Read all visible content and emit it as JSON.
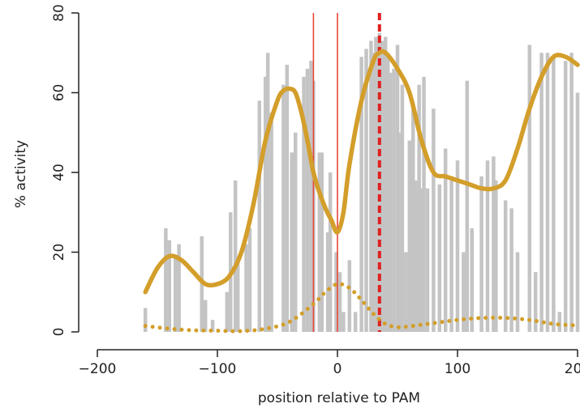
{
  "chart_data": {
    "type": "bar",
    "title": "",
    "xlabel": "position relative to PAM",
    "ylabel": "% activity",
    "xlim": [
      -200,
      200
    ],
    "ylim": [
      0,
      80
    ],
    "xticks": [
      -200,
      -100,
      0,
      100,
      200
    ],
    "yticks": [
      0,
      20,
      40,
      60,
      80
    ],
    "grid": false,
    "colors": {
      "bars": "#c4c4c4",
      "smooth_line": "#d39e2a",
      "vertical_lines": "#e8463c",
      "dashed_line": "#e02020"
    },
    "bars": {
      "x": [
        -160,
        -143,
        -140,
        -135,
        -132,
        -113,
        -110,
        -104,
        -92,
        -89,
        -85,
        -83,
        -76,
        -73,
        -65,
        -60,
        -58,
        -55,
        -45,
        -42,
        -38,
        -35,
        -28,
        -25,
        -22,
        -20,
        -15,
        -13,
        -8,
        -6,
        -1,
        2,
        5,
        10,
        15,
        20,
        24,
        28,
        30,
        32,
        35,
        37,
        40,
        42,
        44,
        47,
        50,
        52,
        54,
        57,
        60,
        63,
        65,
        68,
        70,
        72,
        75,
        80,
        85,
        90,
        95,
        100,
        105,
        108,
        112,
        120,
        125,
        130,
        132,
        140,
        145,
        150,
        160,
        165,
        170,
        175,
        180,
        185,
        190,
        195,
        200
      ],
      "values": [
        6,
        26,
        23,
        19,
        22,
        24,
        8,
        3,
        10,
        30,
        38,
        18,
        22,
        26,
        58,
        64,
        70,
        55,
        62,
        67,
        45,
        50,
        64,
        66,
        68,
        63,
        45,
        45,
        25,
        40,
        20,
        15,
        5,
        18,
        5,
        69,
        71,
        73,
        70,
        74,
        75,
        73,
        74,
        70,
        65,
        66,
        72,
        50,
        62,
        20,
        48,
        56,
        38,
        62,
        36,
        64,
        36,
        56,
        37,
        46,
        39,
        43,
        20,
        63,
        26,
        39,
        43,
        44,
        38,
        33,
        31,
        20,
        72,
        15,
        70,
        70,
        69,
        5,
        68,
        70,
        60
      ]
    },
    "series": [
      {
        "style": "solid",
        "x": [
          -160,
          -150,
          -140,
          -130,
          -120,
          -110,
          -100,
          -90,
          -80,
          -70,
          -60,
          -50,
          -45,
          -40,
          -35,
          -30,
          -25,
          -20,
          -15,
          -10,
          -5,
          0,
          5,
          10,
          20,
          30,
          35,
          40,
          50,
          60,
          70,
          80,
          90,
          100,
          110,
          120,
          130,
          140,
          150,
          160,
          170,
          180,
          190,
          200
        ],
        "y": [
          10,
          16,
          19,
          18,
          15,
          12,
          12,
          14,
          20,
          32,
          48,
          58,
          60.5,
          61,
          60,
          55,
          48,
          40,
          35,
          31,
          28,
          25,
          30,
          42,
          58,
          68,
          70,
          70,
          66,
          60,
          48,
          40,
          39,
          38,
          37,
          36,
          36,
          38,
          46,
          56,
          64,
          69,
          69,
          67
        ]
      },
      {
        "style": "dotted",
        "x": [
          -160,
          -140,
          -120,
          -100,
          -80,
          -60,
          -40,
          -20,
          -10,
          0,
          10,
          20,
          30,
          40,
          50,
          60,
          80,
          100,
          120,
          140,
          160,
          180,
          200
        ],
        "y": [
          1.5,
          0.8,
          0.4,
          0.3,
          0.2,
          0.8,
          2.5,
          7,
          10,
          12,
          11,
          8,
          4.5,
          2,
          1.2,
          1.4,
          2.2,
          3,
          3.5,
          3.5,
          3,
          2,
          1.6
        ]
      }
    ],
    "vertical_lines": [
      {
        "x": -20,
        "style": "solid"
      },
      {
        "x": 0,
        "style": "solid"
      },
      {
        "x": 35,
        "style": "dashed"
      }
    ]
  }
}
